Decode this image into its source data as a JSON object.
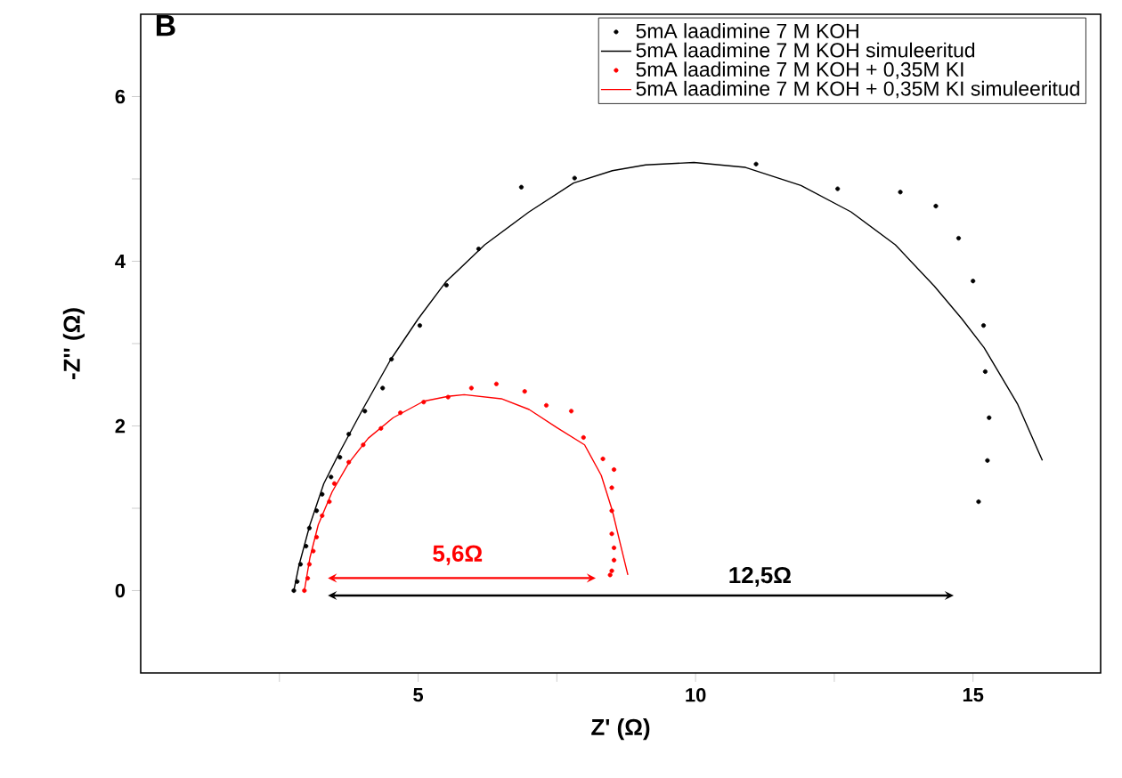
{
  "chart_data": {
    "type": "scatter",
    "title": "B",
    "xlabel": "Z' (Ω)",
    "ylabel": "-Z'' (Ω)",
    "xlim": [
      0,
      17.3
    ],
    "ylim": [
      -1,
      7
    ],
    "xticks": [
      {
        "value": 2.5,
        "label": null
      },
      5,
      {
        "value": 7.5,
        "label": null
      },
      10,
      {
        "value": 12.5,
        "label": null
      },
      15
    ],
    "yticks": [
      0,
      {
        "value": 1,
        "label": null
      },
      2,
      {
        "value": 3,
        "label": null
      },
      4,
      {
        "value": 5,
        "label": null
      },
      6
    ],
    "legend": "top",
    "series": [
      {
        "name": "5mA laadimine 7 M KOH",
        "color": "#000000",
        "x": [
          2.76,
          2.82,
          2.88,
          2.98,
          3.04,
          3.17,
          3.27,
          3.43,
          3.59,
          3.75,
          4.04,
          4.36,
          4.52,
          5.03,
          5.51,
          6.09,
          6.86,
          7.82,
          11.09,
          12.56,
          13.69,
          14.33,
          14.74,
          15.0,
          15.19,
          15.22,
          15.29,
          15.26,
          15.1
        ],
        "values": [
          0.0,
          0.11,
          0.32,
          0.54,
          0.76,
          0.97,
          1.17,
          1.38,
          1.62,
          1.9,
          2.18,
          2.46,
          2.81,
          3.22,
          3.71,
          4.15,
          4.9,
          5.01,
          5.18,
          4.88,
          4.84,
          4.67,
          4.28,
          3.76,
          3.22,
          2.66,
          2.1,
          1.58,
          1.08
        ]
      },
      {
        "name": "5mA laadimine 7 M KOH simuleeritud",
        "type": "line",
        "color": "#000000",
        "x": [
          2.76,
          2.85,
          3.05,
          3.3,
          3.6,
          4.0,
          4.5,
          5.0,
          5.5,
          6.2,
          7.0,
          7.8,
          8.5,
          9.1,
          9.97,
          10.9,
          11.9,
          12.8,
          13.6,
          14.3,
          14.8,
          15.2,
          15.8,
          16.25
        ],
        "values": [
          0.0,
          0.3,
          0.8,
          1.3,
          1.7,
          2.2,
          2.8,
          3.3,
          3.75,
          4.2,
          4.6,
          4.95,
          5.1,
          5.17,
          5.2,
          5.14,
          4.92,
          4.6,
          4.2,
          3.7,
          3.3,
          2.95,
          2.27,
          1.58
        ]
      },
      {
        "name": "5mA laadimine 7 M KOH + 0,35M KI",
        "color": "#ff0000",
        "x": [
          2.95,
          3.01,
          3.04,
          3.11,
          3.17,
          3.27,
          3.4,
          3.49,
          3.75,
          4.01,
          4.33,
          4.68,
          5.1,
          5.54,
          5.96,
          6.41,
          6.92,
          7.31,
          7.76,
          7.98,
          8.33,
          8.53,
          8.49,
          8.49,
          8.49,
          8.53,
          8.53,
          8.49,
          8.46
        ],
        "values": [
          0.0,
          0.15,
          0.32,
          0.48,
          0.65,
          0.91,
          1.08,
          1.3,
          1.56,
          1.77,
          1.97,
          2.16,
          2.29,
          2.35,
          2.46,
          2.51,
          2.42,
          2.25,
          2.18,
          1.86,
          1.6,
          1.47,
          1.25,
          0.97,
          0.69,
          0.52,
          0.37,
          0.24,
          0.19
        ]
      },
      {
        "name": "5mA laadimine 7 M KOH + 0,35M KI simuleeritud",
        "type": "line",
        "color": "#ff0000",
        "x": [
          2.95,
          3.05,
          3.2,
          3.45,
          3.75,
          4.1,
          4.55,
          5.1,
          5.54,
          5.83,
          6.5,
          7.0,
          7.5,
          8.0,
          8.3,
          8.5,
          8.65,
          8.78
        ],
        "values": [
          0.0,
          0.4,
          0.8,
          1.2,
          1.55,
          1.85,
          2.1,
          2.3,
          2.36,
          2.38,
          2.33,
          2.2,
          1.98,
          1.77,
          1.4,
          0.97,
          0.55,
          0.19
        ]
      }
    ],
    "annotations": [
      "**5,6Ω**",
      "**12,5Ω**"
    ]
  }
}
